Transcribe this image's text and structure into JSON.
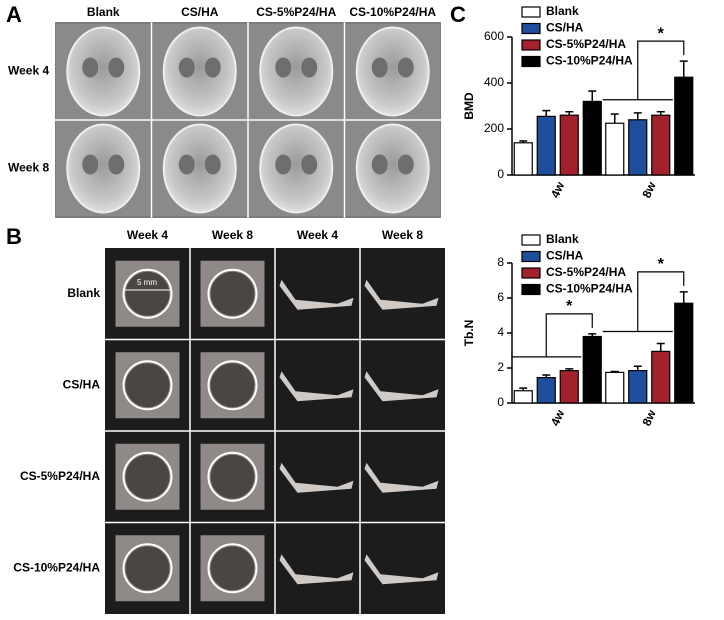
{
  "figure": {
    "panel_a": {
      "label": "A",
      "columns": [
        "Blank",
        "CS/HA",
        "CS-5%P24/HA",
        "CS-10%P24/HA"
      ],
      "rows": [
        "Week 4",
        "Week 8"
      ]
    },
    "panel_b": {
      "label": "B",
      "columns": [
        "Week 4",
        "Week 8",
        "Week 4",
        "Week 8"
      ],
      "rows": [
        "Blank",
        "CS/HA",
        "CS-5%P24/HA",
        "CS-10%P24/HA"
      ],
      "scale_label": "5 mm"
    },
    "panel_c": {
      "label": "C"
    }
  },
  "chart_data": [
    {
      "type": "bar",
      "ylabel": "BMD",
      "categories": [
        "4w",
        "8w"
      ],
      "legend": "upper left",
      "ylim": [
        0,
        600
      ],
      "yticks": [
        0,
        200,
        400,
        600
      ],
      "series": [
        {
          "name": "Blank",
          "color": "#ffffff",
          "values": [
            140,
            225
          ],
          "errors": [
            8,
            40
          ]
        },
        {
          "name": "CS/HA",
          "color": "#1f4e9c",
          "values": [
            255,
            240
          ],
          "errors": [
            25,
            30
          ]
        },
        {
          "name": "CS-5%P24/HA",
          "color": "#a3202d",
          "values": [
            260,
            260
          ],
          "errors": [
            15,
            15
          ]
        },
        {
          "name": "CS-10%P24/HA",
          "color": "#000000",
          "values": [
            320,
            425
          ],
          "errors": [
            45,
            70
          ]
        }
      ],
      "annotations": [
        {
          "text": "*",
          "category": "8w"
        }
      ]
    },
    {
      "type": "bar",
      "ylabel": "Tb.N",
      "categories": [
        "4w",
        "8w"
      ],
      "legend": "upper left",
      "ylim": [
        0,
        8
      ],
      "yticks": [
        0,
        2,
        4,
        6,
        8
      ],
      "series": [
        {
          "name": "Blank",
          "color": "#ffffff",
          "values": [
            0.7,
            1.75
          ],
          "errors": [
            0.15,
            0.05
          ]
        },
        {
          "name": "CS/HA",
          "color": "#1f4e9c",
          "values": [
            1.45,
            1.85
          ],
          "errors": [
            0.15,
            0.25
          ]
        },
        {
          "name": "CS-5%P24/HA",
          "color": "#a3202d",
          "values": [
            1.85,
            2.95
          ],
          "errors": [
            0.1,
            0.45
          ]
        },
        {
          "name": "CS-10%P24/HA",
          "color": "#000000",
          "values": [
            3.8,
            5.7
          ],
          "errors": [
            0.15,
            0.65
          ]
        }
      ],
      "annotations": [
        {
          "text": "*",
          "category": "4w"
        },
        {
          "text": "*",
          "category": "8w"
        }
      ]
    }
  ]
}
